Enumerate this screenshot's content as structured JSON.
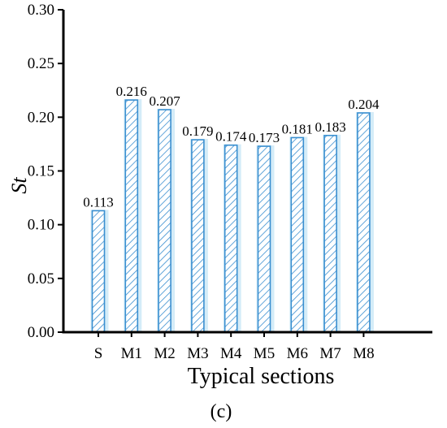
{
  "chart_data": {
    "type": "bar",
    "categories": [
      "S",
      "M1",
      "M2",
      "M3",
      "M4",
      "M5",
      "M6",
      "M7",
      "M8"
    ],
    "values": [
      0.113,
      0.216,
      0.207,
      0.179,
      0.174,
      0.173,
      0.181,
      0.183,
      0.204
    ],
    "data_labels": [
      "0.113",
      "0.216",
      "0.207",
      "0.179",
      "0.174",
      "0.173",
      "0.181",
      "0.183",
      "0.204"
    ],
    "xlabel": "Typical sections",
    "ylabel": "St",
    "ylim": [
      0,
      0.3
    ],
    "yticks": [
      "0.00",
      "0.05",
      "0.10",
      "0.15",
      "0.20",
      "0.25",
      "0.30"
    ],
    "bar_color": "#3a8fd0",
    "bar_shadow_color": "#d4ecf8",
    "grid": false,
    "panel_label": "(c)"
  }
}
